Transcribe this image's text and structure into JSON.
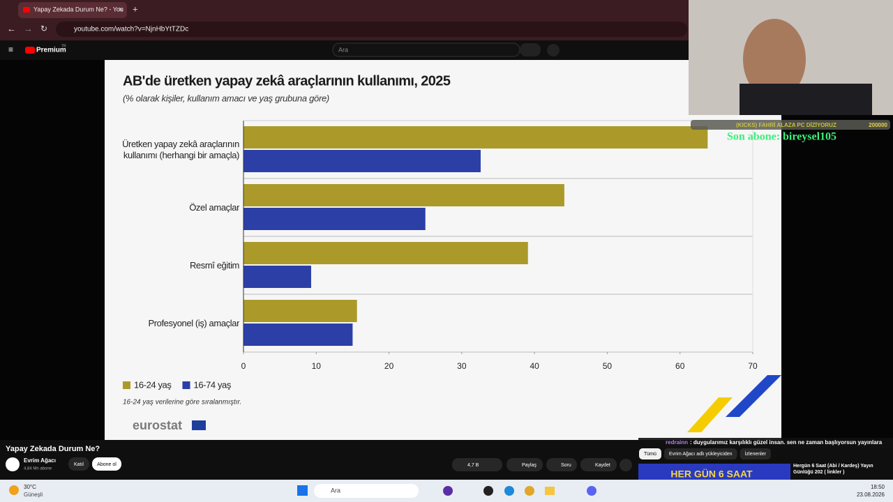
{
  "browser": {
    "tab_title": "Yapay Zekada Durum Ne? - You",
    "url": "youtube.com/watch?v=NjnHbYtTZDc"
  },
  "youtube_header": {
    "logo": "Premium",
    "region": "TR",
    "search_placeholder": "Ara"
  },
  "chart_data": {
    "type": "bar",
    "orientation": "horizontal",
    "title": "AB'de üretken yapay zekâ araçlarının kullanımı, 2025",
    "subtitle": "(% olarak kişiler, kullanım amacı ve yaş grubuna göre)",
    "categories": [
      "Üretken yapay zekâ araçlarının kullanımı (herhangi bir amaçla)",
      "Özel amaçlar",
      "Resmî eğitim",
      "Profesyonel (iş) amaçlar"
    ],
    "series": [
      {
        "name": "16-24 yaş",
        "color": "#ab9a2a",
        "values": [
          63.8,
          44.1,
          39.1,
          15.6
        ]
      },
      {
        "name": "16-74 yaş",
        "color": "#2b3fa6",
        "values": [
          32.6,
          25.0,
          9.3,
          15.0
        ]
      }
    ],
    "xlim": [
      0,
      70
    ],
    "xticks": [
      0,
      10,
      20,
      30,
      40,
      50,
      60,
      70
    ],
    "legend": "bottom-left",
    "note": "16-24 yaş verilerine göre sıralanmıştır.",
    "source": "eurostat"
  },
  "stream_overlay": {
    "ticker": "(KICKS) FAHRİ ALAZA PC DİZİYORUZ",
    "goal": "200000",
    "last_subscriber": "Son abone: bireysel105"
  },
  "video_info": {
    "title": "Yapay Zekada Durum Ne?",
    "channel": "Evrim Ağacı",
    "subscribers": "4,84 Mn abone",
    "join": "Katıl",
    "subscribe": "Abone ol",
    "likes": "4,7 B",
    "share": "Paylaş",
    "ask": "Soru",
    "save": "Kaydet"
  },
  "chat": {
    "user": "redrainn",
    "message": ": duygularımız karşılıklı güzel insan. sen ne zaman başlıyorsun yayınlara"
  },
  "filters": [
    "Tümü",
    "Evrim Ağacı adlı yükleyiciden",
    "İzlenenler"
  ],
  "recommended": {
    "thumbnail_text": "HER GÜN 6 SAAT",
    "title": "Hergün 6 Saat (Abi / Kardeş) Yayın Günlüğü 202 ( linkler )"
  },
  "taskbar": {
    "weather_temp": "30°C",
    "weather_desc": "Güneşli",
    "search": "Ara",
    "time": "18:50",
    "date": "23.08.2026"
  }
}
